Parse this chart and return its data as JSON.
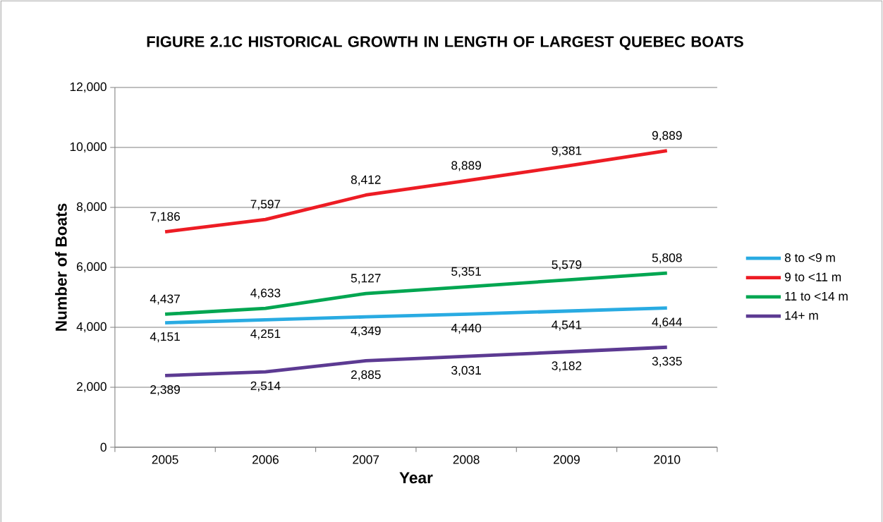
{
  "chart_data": {
    "type": "line",
    "title": "FIGURE 2.1C  HISTORICAL GROWTH IN LENGTH OF LARGEST QUEBEC BOATS",
    "xlabel": "Year",
    "ylabel": "Number of Boats",
    "categories": [
      "2005",
      "2006",
      "2007",
      "2008",
      "2009",
      "2010"
    ],
    "series": [
      {
        "name": "8 to <9 m",
        "color": "#29abe2",
        "values": [
          4151,
          4251,
          4349,
          4440,
          4541,
          4644
        ],
        "value_labels": [
          "4,151",
          "4,251",
          "4,349",
          "4,440",
          "4,541",
          "4,644"
        ]
      },
      {
        "name": "9 to <11 m",
        "color": "#ed1c24",
        "values": [
          7186,
          7597,
          8412,
          8889,
          9381,
          9889
        ],
        "value_labels": [
          "7,186",
          "7,597",
          "8,412",
          "8,889",
          "9,381",
          "9,889"
        ]
      },
      {
        "name": "11 to <14 m",
        "color": "#00a651",
        "values": [
          4437,
          4633,
          5127,
          5351,
          5579,
          5808
        ],
        "value_labels": [
          "4,437",
          "4,633",
          "5,127",
          "5,351",
          "5,579",
          "5,808"
        ]
      },
      {
        "name": "14+ m",
        "color": "#5c3a92",
        "values": [
          2389,
          2514,
          2885,
          3031,
          3182,
          3335
        ],
        "value_labels": [
          "2,389",
          "2,514",
          "2,885",
          "3,031",
          "3,182",
          "3,335"
        ]
      }
    ],
    "ylim": [
      0,
      12000
    ],
    "yticks": [
      {
        "value": 0,
        "label": "0"
      },
      {
        "value": 2000,
        "label": "2,000"
      },
      {
        "value": 4000,
        "label": "4,000"
      },
      {
        "value": 6000,
        "label": "6,000"
      },
      {
        "value": 8000,
        "label": "8,000"
      },
      {
        "value": 10000,
        "label": "10,000"
      },
      {
        "value": 12000,
        "label": "12,000"
      }
    ],
    "grid": "y",
    "legend": "right"
  }
}
